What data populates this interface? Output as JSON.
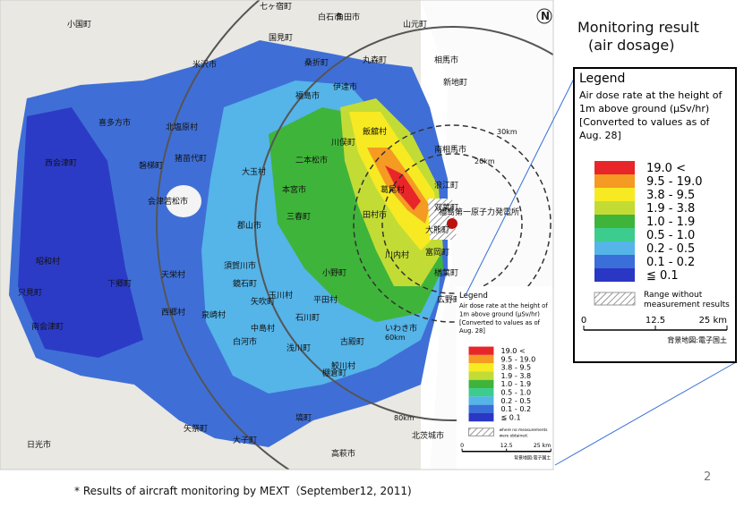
{
  "title": {
    "line1": "Monitoring result",
    "line2": "(air dosage)"
  },
  "legend": {
    "title": "Legend",
    "description": [
      "Air dose rate at the height of",
      "1m above ground (μSv/hr)",
      "[Converted to values as of",
      "Aug. 28]"
    ],
    "items": [
      {
        "label": "19.0 <",
        "color": "#e8262a"
      },
      {
        "label": "9.5 - 19.0",
        "color": "#f59a23"
      },
      {
        "label": "3.8 - 9.5",
        "color": "#f7ea22"
      },
      {
        "label": "1.9 - 3.8",
        "color": "#c2dc35"
      },
      {
        "label": "1.0 - 1.9",
        "color": "#3fb43a"
      },
      {
        "label": "0.5 - 1.0",
        "color": "#3ccc8e"
      },
      {
        "label": "0.2 - 0.5",
        "color": "#55b4e8"
      },
      {
        "label": "0.1 - 0.2",
        "color": "#3a6ed8"
      },
      {
        "label": "≦ 0.1",
        "color": "#2a36c4"
      }
    ],
    "hatch_label": [
      "Range without",
      "measurement results"
    ],
    "small_hatch_label": [
      "where no measurements",
      "were obtained."
    ],
    "scale": [
      "0",
      "12.5",
      "25 km"
    ],
    "credit": "背景地図:電子国土"
  },
  "map": {
    "labels": [
      "小国町",
      "七ヶ宿町",
      "白石市",
      "角田市",
      "山元町",
      "相馬市",
      "南相馬市",
      "飯舘村",
      "伊達市",
      "福島市",
      "川俣町",
      "二本松市",
      "本宮市",
      "郡山市",
      "三春町",
      "田村市",
      "葛尾村",
      "浪江町",
      "双葉町",
      "大熊町",
      "富岡町",
      "川内村",
      "楢葉町",
      "広野町",
      "小野町",
      "須賀川市",
      "天栄村",
      "白河市",
      "いわき市",
      "会津若松市",
      "喜多方市",
      "猪苗代町",
      "北塩原村",
      "磐梯町",
      "大玉村",
      "下郷町",
      "南会津町",
      "只見町",
      "昭和村",
      "西会津町",
      "矢祭町",
      "棚倉町",
      "塙町",
      "古殿町",
      "鮫川村",
      "石川町",
      "玉川村",
      "平田村",
      "浅川町",
      "中島村",
      "矢吹町",
      "鏡石町",
      "西郷村",
      "泉崎村",
      "日光市",
      "大子町",
      "高萩市",
      "北茨城市",
      "福島第一原子力発電所",
      "30km",
      "20km",
      "80km",
      "60km",
      "丸森町",
      "新地町",
      "桑折町",
      "国見町",
      "米沢市"
    ]
  },
  "footnote": "* Results of aircraft monitoring by MEXT（September12, 2011)",
  "page_number": "2"
}
